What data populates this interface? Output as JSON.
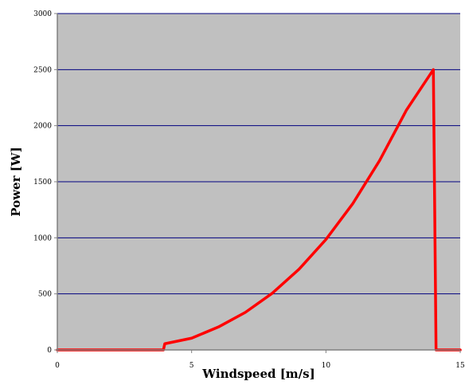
{
  "chart_data": {
    "type": "line",
    "title": "",
    "xlabel": "Windspeed [m/s]",
    "ylabel": "Power [W]",
    "xlim": [
      0,
      15
    ],
    "ylim": [
      0,
      3000
    ],
    "x_ticks": [
      0,
      5,
      10,
      15
    ],
    "y_ticks": [
      0,
      500,
      1000,
      1500,
      2000,
      2500,
      3000
    ],
    "x_tick_labels": [
      "0",
      "5",
      "10",
      "15"
    ],
    "y_tick_labels": [
      "0",
      "500",
      "1000",
      "1500",
      "2000",
      "2500",
      "3000"
    ],
    "grid": "horizontal",
    "legend": "none",
    "colors": {
      "plot_background": "#c0c0c0",
      "gridline": "#00007f",
      "series_line": "#ff0000",
      "axis": "#808080"
    },
    "series": [
      {
        "values": [
          [
            0,
            0
          ],
          [
            3.95,
            0
          ],
          [
            4.0,
            55
          ],
          [
            5,
            105
          ],
          [
            6,
            205
          ],
          [
            7,
            335
          ],
          [
            8,
            505
          ],
          [
            9,
            720
          ],
          [
            10,
            985
          ],
          [
            11,
            1305
          ],
          [
            12,
            1690
          ],
          [
            13,
            2140
          ],
          [
            14,
            2500
          ],
          [
            14.1,
            0
          ],
          [
            15,
            0
          ]
        ]
      }
    ]
  }
}
